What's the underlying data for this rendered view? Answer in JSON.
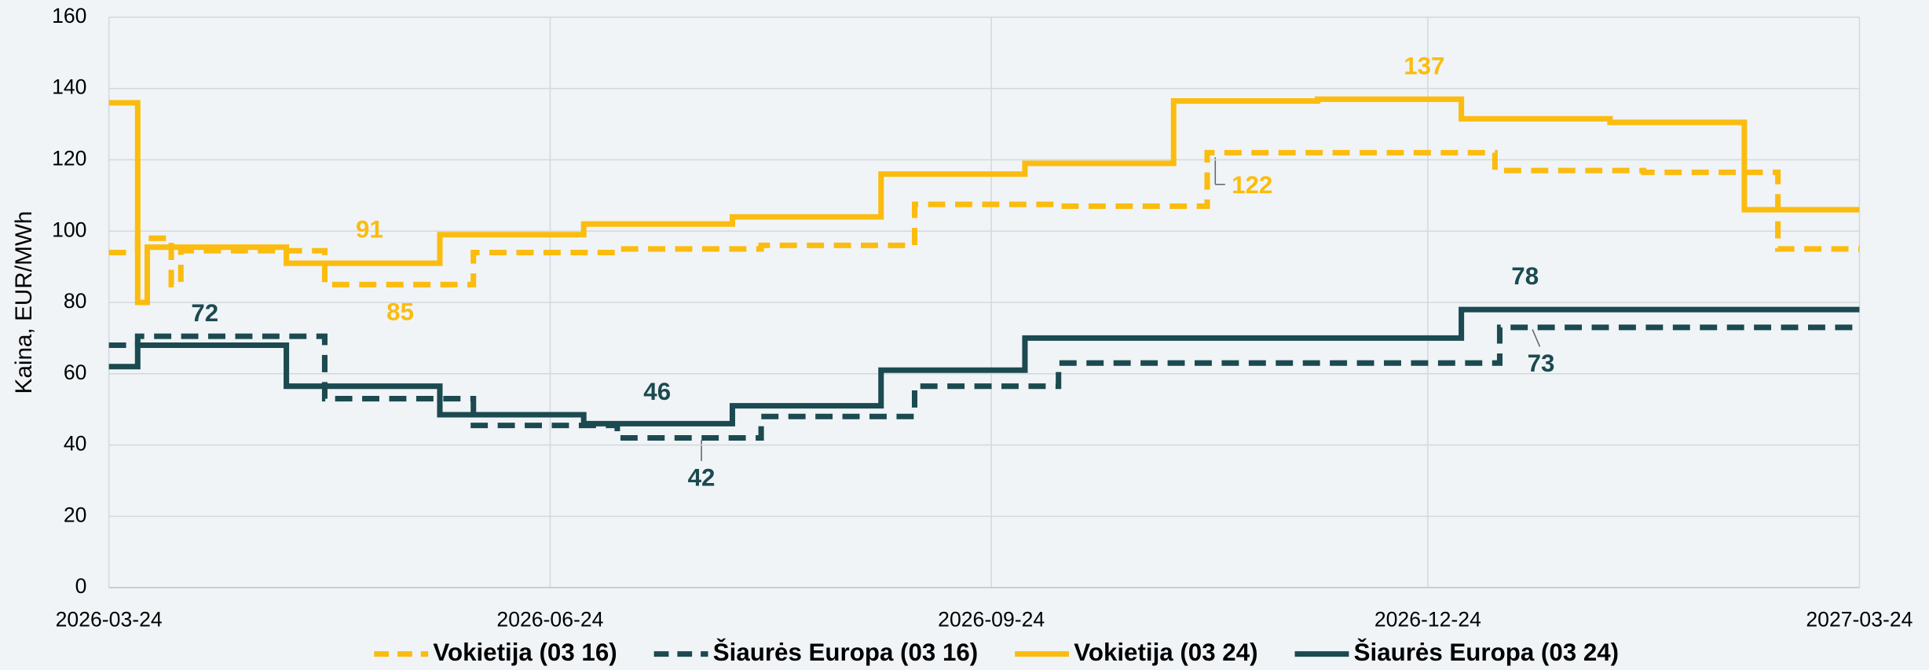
{
  "chart_data": {
    "type": "line",
    "y_label": "Kaina, EUR/MWh",
    "xlim": [
      "2026-03-24",
      "2027-03-24"
    ],
    "xticks": [
      "2026-03-24",
      "2026-06-24",
      "2026-09-24",
      "2026-12-24",
      "2027-03-24"
    ],
    "ylim": [
      0,
      160
    ],
    "yticks": [
      0,
      20,
      40,
      60,
      80,
      100,
      120,
      140,
      160
    ],
    "grid": true,
    "step": true,
    "legend": "bottom",
    "series": [
      {
        "name": "Vokietija (03 16)",
        "color": "#fbbc0f",
        "dashed": true,
        "x": [
          "2026-03-24",
          "2026-03-30",
          "2026-04-06",
          "2026-04-08",
          "2026-05-08",
          "2026-06-08",
          "2026-07-08",
          "2026-08-07",
          "2026-09-08",
          "2026-10-08",
          "2026-11-08",
          "2027-01-07",
          "2027-02-07",
          "2027-03-07",
          "2027-03-24"
        ],
        "values": [
          94,
          98,
          85,
          94.5,
          85,
          94,
          95,
          96,
          107.5,
          107,
          122,
          117,
          116.5,
          95,
          95
        ]
      },
      {
        "name": "Šiaurės Europa (03 16)",
        "color": "#1b4a50",
        "dashed": true,
        "x": [
          "2026-03-24",
          "2026-03-30",
          "2026-05-08",
          "2026-06-08",
          "2026-07-08",
          "2026-08-07",
          "2026-09-08",
          "2026-10-08",
          "2027-01-08",
          "2027-03-24"
        ],
        "values": [
          68,
          70.5,
          53,
          45.5,
          42,
          48,
          56.5,
          63,
          73,
          73
        ]
      },
      {
        "name": "Vokietija (03 24)",
        "color": "#fbbc0f",
        "dashed": false,
        "x": [
          "2026-03-24",
          "2026-03-30",
          "2026-04-01",
          "2026-04-30",
          "2026-06-01",
          "2026-07-01",
          "2026-08-01",
          "2026-09-01",
          "2026-10-01",
          "2026-11-01",
          "2026-12-01",
          "2026-12-31",
          "2027-01-31",
          "2027-02-28",
          "2027-03-24"
        ],
        "values": [
          136,
          80,
          95.5,
          91,
          99,
          102,
          104,
          116,
          119,
          136.5,
          137,
          131.5,
          130.5,
          106,
          106
        ]
      },
      {
        "name": "Šiaurės Europa (03 24)",
        "color": "#1b4a50",
        "dashed": false,
        "x": [
          "2026-03-24",
          "2026-03-30",
          "2026-04-30",
          "2026-06-01",
          "2026-07-01",
          "2026-08-01",
          "2026-09-01",
          "2026-10-01",
          "2026-12-31",
          "2027-03-24"
        ],
        "values": [
          62,
          68,
          56.5,
          48.5,
          46,
          51,
          61,
          70,
          78,
          78
        ]
      }
    ],
    "annotations": [
      {
        "text": "91",
        "color": "#fbbc0f"
      },
      {
        "text": "85",
        "color": "#fbbc0f"
      },
      {
        "text": "137",
        "color": "#fbbc0f"
      },
      {
        "text": "122",
        "color": "#fbbc0f"
      },
      {
        "text": "72",
        "color": "#1b4a50"
      },
      {
        "text": "46",
        "color": "#1b4a50"
      },
      {
        "text": "42",
        "color": "#1b4a50"
      },
      {
        "text": "78",
        "color": "#1b4a50"
      },
      {
        "text": "73",
        "color": "#1b4a50"
      }
    ]
  }
}
